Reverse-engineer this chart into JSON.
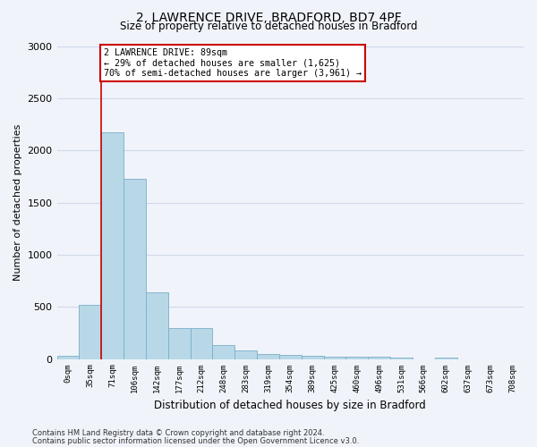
{
  "title": "2, LAWRENCE DRIVE, BRADFORD, BD7 4PF",
  "subtitle": "Size of property relative to detached houses in Bradford",
  "xlabel": "Distribution of detached houses by size in Bradford",
  "ylabel": "Number of detached properties",
  "bar_color": "#b8d8e8",
  "bar_edge_color": "#7baec8",
  "grid_color": "#d0d8e8",
  "background_color": "#f0f4fa",
  "bin_labels": [
    "0sqm",
    "35sqm",
    "71sqm",
    "106sqm",
    "142sqm",
    "177sqm",
    "212sqm",
    "248sqm",
    "283sqm",
    "319sqm",
    "354sqm",
    "389sqm",
    "425sqm",
    "460sqm",
    "496sqm",
    "531sqm",
    "566sqm",
    "602sqm",
    "637sqm",
    "673sqm",
    "708sqm"
  ],
  "bar_values": [
    30,
    520,
    2175,
    1725,
    635,
    300,
    300,
    135,
    85,
    45,
    35,
    30,
    25,
    25,
    20,
    15,
    0,
    15,
    0,
    0,
    0
  ],
  "ylim": [
    0,
    3000
  ],
  "yticks": [
    0,
    500,
    1000,
    1500,
    2000,
    2500,
    3000
  ],
  "vline_x": 2,
  "bar_width": 1.0,
  "annotation_title": "2 LAWRENCE DRIVE: 89sqm",
  "annotation_line1": "← 29% of detached houses are smaller (1,625)",
  "annotation_line2": "70% of semi-detached houses are larger (3,961) →",
  "annotation_box_color": "#ffffff",
  "annotation_box_edge": "#cc0000",
  "vline_color": "#cc0000",
  "footnote1": "Contains HM Land Registry data © Crown copyright and database right 2024.",
  "footnote2": "Contains public sector information licensed under the Open Government Licence v3.0."
}
